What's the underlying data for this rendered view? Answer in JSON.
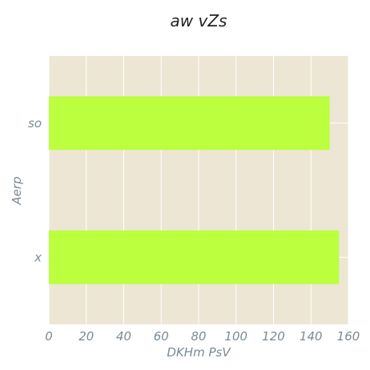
{
  "chart_data": {
    "type": "bar",
    "orientation": "horizontal",
    "title": "aw vZs",
    "xlabel": "DKHm PsV",
    "ylabel": "Aerp",
    "categories": [
      "x",
      "so"
    ],
    "values": [
      155,
      150
    ],
    "xlim": [
      0,
      160
    ],
    "xticks": [
      "0",
      "20",
      "40",
      "60",
      "80",
      "100",
      "120",
      "140",
      "160"
    ],
    "grid": true,
    "colors": {
      "bar": "#bbff3f",
      "plot_background": "#ede6d4",
      "grid": "#ffffff",
      "tick_text": "#7a8a94"
    }
  }
}
